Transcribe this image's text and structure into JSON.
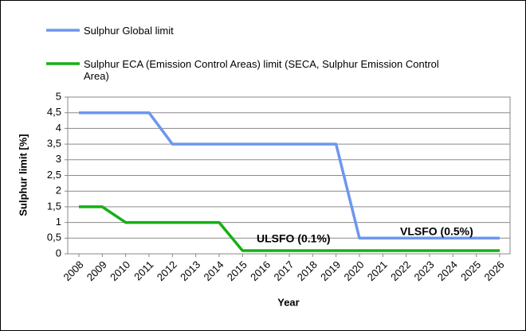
{
  "chart_data": {
    "type": "line",
    "x_label": "Year",
    "y_label": "Sulphur limit [%]",
    "categories": [
      "2008",
      "2009",
      "2010",
      "2011",
      "2012",
      "2013",
      "2014",
      "2015",
      "2016",
      "2017",
      "2018",
      "2019",
      "2020",
      "2021",
      "2022",
      "2023",
      "2024",
      "2025",
      "2026"
    ],
    "series": [
      {
        "name": "Sulphur Global limit",
        "color": "#6d97ee",
        "values": [
          4.5,
          4.5,
          4.5,
          4.5,
          3.5,
          3.5,
          3.5,
          3.5,
          3.5,
          3.5,
          3.5,
          3.5,
          0.5,
          0.5,
          0.5,
          0.5,
          0.5,
          0.5,
          0.5
        ]
      },
      {
        "name": "Sulphur ECA (Emission Control Areas) limit (SECA, Sulphur Emission Control Area)",
        "color": "#14b014",
        "values": [
          1.5,
          1.5,
          1,
          1,
          1,
          1,
          1,
          0.1,
          0.1,
          0.1,
          0.1,
          0.1,
          0.1,
          0.1,
          0.1,
          0.1,
          0.1,
          0.1,
          0.1
        ]
      }
    ],
    "ylim": [
      0,
      5
    ],
    "yticks": [
      0,
      {
        "value": 0.5,
        "label": "0,5"
      },
      1,
      {
        "value": 1.5,
        "label": "1,5"
      },
      2,
      {
        "value": 2.5,
        "label": "2,5"
      },
      3,
      {
        "value": 3.5,
        "label": "3,5"
      },
      4,
      {
        "value": 4.5,
        "label": "4,5"
      },
      5
    ],
    "grid": true,
    "annotations": [
      {
        "text": "ULSFO (0.1%)",
        "color": "#9b1b1b"
      },
      {
        "text": "VLSFO (0.5%)",
        "color": "#9b1b1b"
      }
    ]
  }
}
